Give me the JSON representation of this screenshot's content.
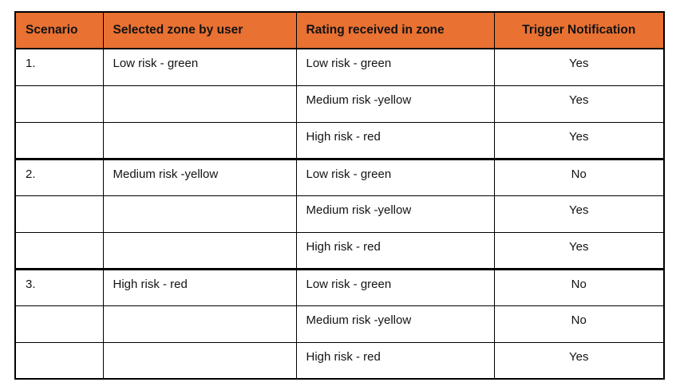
{
  "colors": {
    "header_bg": "#E97132",
    "border": "#000000",
    "text": "#131313"
  },
  "table": {
    "headers": [
      "Scenario",
      "Selected zone by user",
      "Rating received in zone",
      "Trigger Notification"
    ],
    "rows": [
      {
        "scenario": "1.",
        "selected_zone": "Low risk - green",
        "rating": "Low risk - green",
        "trigger": "Yes"
      },
      {
        "scenario": "",
        "selected_zone": "",
        "rating": "Medium risk -yellow",
        "trigger": "Yes"
      },
      {
        "scenario": "",
        "selected_zone": "",
        "rating": "High risk - red",
        "trigger": "Yes"
      },
      {
        "scenario": "2.",
        "selected_zone": "Medium risk -yellow",
        "rating": "Low risk - green",
        "trigger": "No"
      },
      {
        "scenario": "",
        "selected_zone": "",
        "rating": "Medium risk -yellow",
        "trigger": "Yes"
      },
      {
        "scenario": "",
        "selected_zone": "",
        "rating": "High risk - red",
        "trigger": "Yes"
      },
      {
        "scenario": "3.",
        "selected_zone": "High risk - red",
        "rating": "Low risk - green",
        "trigger": "No"
      },
      {
        "scenario": "",
        "selected_zone": "",
        "rating": "Medium risk -yellow",
        "trigger": "No"
      },
      {
        "scenario": "",
        "selected_zone": "",
        "rating": "High risk - red",
        "trigger": "Yes"
      }
    ]
  }
}
